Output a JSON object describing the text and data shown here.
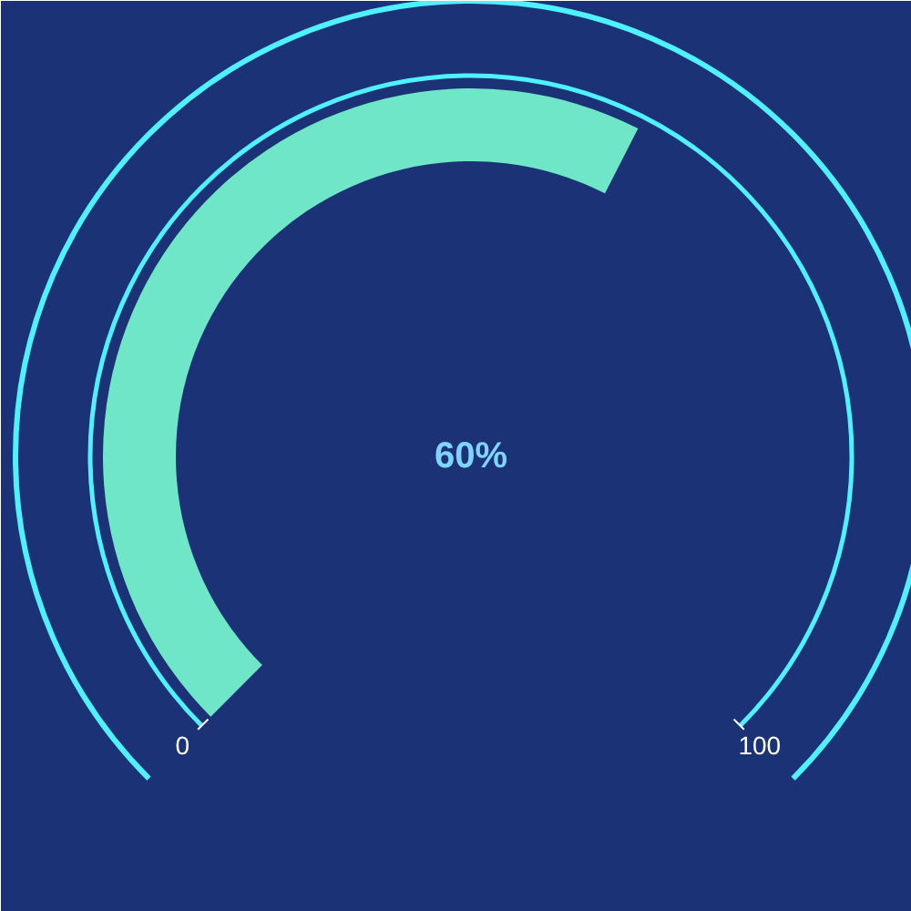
{
  "chart_data": {
    "type": "other",
    "values": [
      60
    ],
    "value_labels": [
      "60%"
    ],
    "color": "#6fe6c8",
    "annotations": [
      "0",
      "100"
    ]
  }
}
